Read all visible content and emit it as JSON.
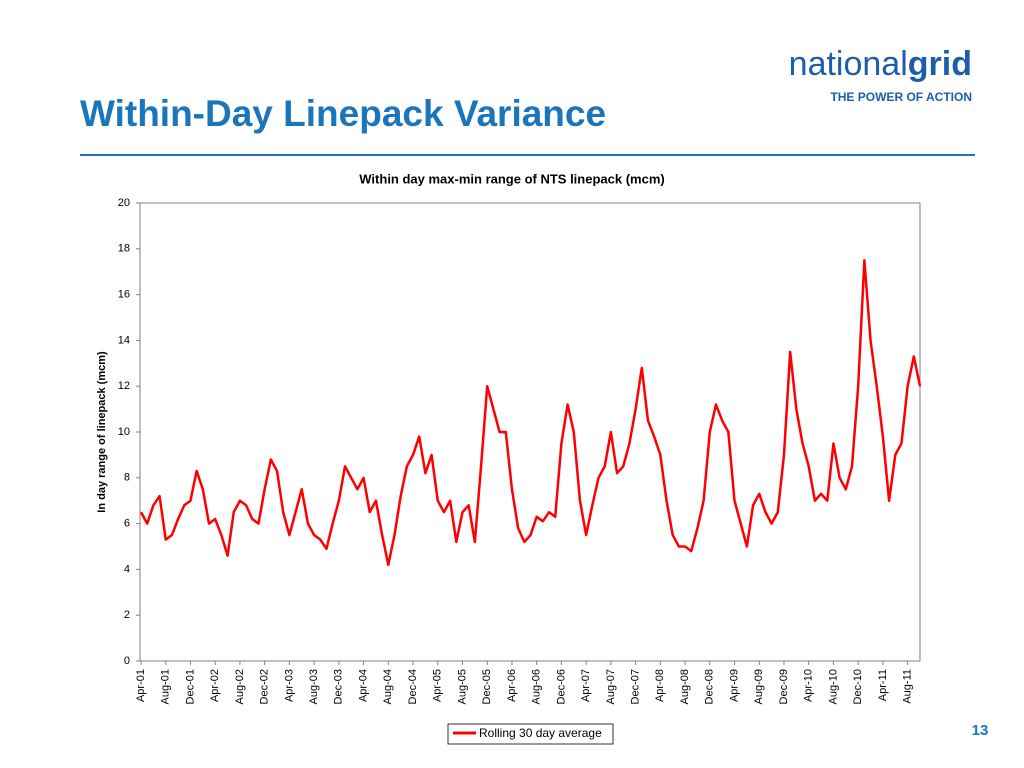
{
  "slide": {
    "title": "Within-Day Linepack Variance",
    "logo_light": "national",
    "logo_bold": "grid",
    "tagline": "THE POWER OF ACTION",
    "page_number": "13"
  },
  "chart_data": {
    "type": "line",
    "title": "Within day max-min range of NTS linepack (mcm)",
    "y_label": "In day range of linepack (mcm)",
    "categories": [
      "Apr-01",
      null,
      null,
      null,
      "Aug-01",
      null,
      null,
      null,
      "Dec-01",
      null,
      null,
      null,
      "Apr-02",
      null,
      null,
      null,
      "Aug-02",
      null,
      null,
      null,
      "Dec-02",
      null,
      null,
      null,
      "Apr-03",
      null,
      null,
      null,
      "Aug-03",
      null,
      null,
      null,
      "Dec-03",
      null,
      null,
      null,
      "Apr-04",
      null,
      null,
      null,
      "Aug-04",
      null,
      null,
      null,
      "Dec-04",
      null,
      null,
      null,
      "Apr-05",
      null,
      null,
      null,
      "Aug-05",
      null,
      null,
      null,
      "Dec-05",
      null,
      null,
      null,
      "Apr-06",
      null,
      null,
      null,
      "Aug-06",
      null,
      null,
      null,
      "Dec-06",
      null,
      null,
      null,
      "Apr-07",
      null,
      null,
      null,
      "Aug-07",
      null,
      null,
      null,
      "Dec-07",
      null,
      null,
      null,
      "Apr-08",
      null,
      null,
      null,
      "Aug-08",
      null,
      null,
      null,
      "Dec-08",
      null,
      null,
      null,
      "Apr-09",
      null,
      null,
      null,
      "Aug-09",
      null,
      null,
      null,
      "Dec-09",
      null,
      null,
      null,
      "Apr-10",
      null,
      null,
      null,
      "Aug-10",
      null,
      null,
      null,
      "Dec-10",
      null,
      null,
      null,
      "Apr-11",
      null,
      null,
      null,
      "Aug-11",
      null,
      null
    ],
    "series": [
      {
        "name": "Rolling 30 day average",
        "color": "#ff0000",
        "values": [
          6.5,
          6.0,
          6.8,
          7.2,
          5.3,
          5.5,
          6.2,
          6.8,
          7.0,
          8.3,
          7.5,
          6.0,
          6.2,
          5.5,
          4.6,
          6.5,
          7.0,
          6.8,
          6.2,
          6.0,
          7.5,
          8.8,
          8.3,
          6.5,
          5.5,
          6.5,
          7.5,
          6.0,
          5.5,
          5.3,
          4.9,
          6.0,
          7.0,
          8.5,
          8.0,
          7.5,
          8.0,
          6.5,
          7.0,
          5.5,
          4.2,
          5.5,
          7.2,
          8.5,
          9.0,
          9.8,
          8.2,
          9.0,
          7.0,
          6.5,
          7.0,
          5.2,
          6.5,
          6.8,
          5.2,
          8.5,
          12.0,
          11.0,
          10.0,
          10.0,
          7.5,
          5.8,
          5.2,
          5.5,
          6.3,
          6.1,
          6.5,
          6.3,
          9.5,
          11.2,
          10.0,
          7.0,
          5.5,
          6.8,
          8.0,
          8.5,
          10.0,
          8.2,
          8.5,
          9.5,
          11.0,
          12.8,
          10.5,
          9.8,
          9.0,
          7.0,
          5.5,
          5.0,
          5.0,
          4.8,
          5.8,
          7.0,
          10.0,
          11.2,
          10.5,
          10.0,
          7.0,
          6.0,
          5.0,
          6.8,
          7.3,
          6.5,
          6.0,
          6.5,
          9.0,
          13.5,
          11.0,
          9.5,
          8.5,
          7.0,
          7.3,
          7.0,
          9.5,
          8.0,
          7.5,
          8.5,
          12.0,
          17.5,
          14.0,
          12.0,
          9.8,
          7.0,
          9.0,
          9.5,
          12.0,
          13.3,
          12.0
        ]
      }
    ],
    "ylim": [
      0,
      20
    ],
    "yticks": [
      0,
      2,
      4,
      6,
      8,
      10,
      12,
      14,
      16,
      18,
      20
    ],
    "grid": false,
    "legend": "bottom"
  }
}
